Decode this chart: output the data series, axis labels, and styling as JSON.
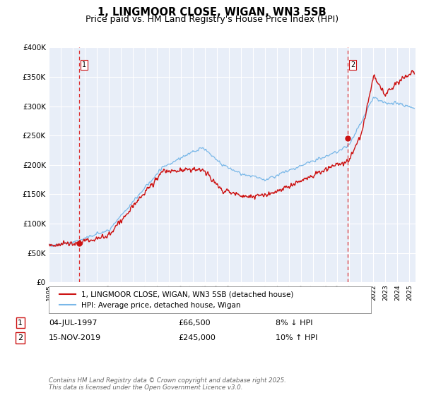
{
  "title": "1, LINGMOOR CLOSE, WIGAN, WN3 5SB",
  "subtitle": "Price paid vs. HM Land Registry's House Price Index (HPI)",
  "title_fontsize": 10.5,
  "subtitle_fontsize": 9,
  "bg_color": "#ffffff",
  "plot_bg_color": "#e8eef8",
  "grid_color": "#ffffff",
  "sale1_date": 1997.54,
  "sale1_price": 66500,
  "sale2_date": 2019.88,
  "sale2_price": 245000,
  "legend1": "1, LINGMOOR CLOSE, WIGAN, WN3 5SB (detached house)",
  "legend2": "HPI: Average price, detached house, Wigan",
  "table_row1": [
    "1",
    "04-JUL-1997",
    "£66,500",
    "8% ↓ HPI"
  ],
  "table_row2": [
    "2",
    "15-NOV-2019",
    "£245,000",
    "10% ↑ HPI"
  ],
  "footer": "Contains HM Land Registry data © Crown copyright and database right 2025.\nThis data is licensed under the Open Government Licence v3.0.",
  "hpi_color": "#7ab8e8",
  "price_color": "#cc1111",
  "vline_color": "#dd3333",
  "xmin": 1995.0,
  "xmax": 2025.5,
  "ymin": 0,
  "ymax": 400000,
  "badge_color": "#cc1111"
}
